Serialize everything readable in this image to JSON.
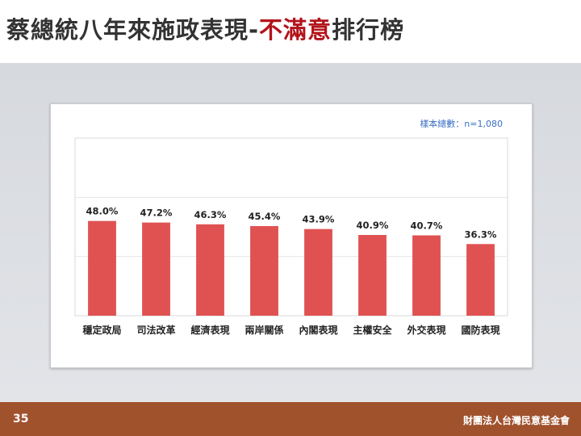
{
  "title": {
    "part1": "蔡總統八年來施政表現-",
    "highlight": "不滿意",
    "part2": "排行榜"
  },
  "sample_note": "樣本總數：n=1,080",
  "footer": {
    "page_number": "35",
    "org": "財團法人台灣民意基金會"
  },
  "colors": {
    "bar": "#e05252",
    "highlight": "#b3131b",
    "footer": "#a0522d"
  },
  "chart_data": {
    "type": "bar",
    "categories": [
      "穩定政局",
      "司法改革",
      "經濟表現",
      "兩岸關係",
      "內閣表現",
      "主權安全",
      "外交表現",
      "國防表現"
    ],
    "values": [
      48.0,
      47.2,
      46.3,
      45.4,
      43.9,
      40.9,
      40.7,
      36.3
    ],
    "value_labels": [
      "48.0%",
      "47.2%",
      "46.3%",
      "45.4%",
      "43.9%",
      "40.9%",
      "40.7%",
      "36.3%"
    ],
    "ylim": [
      0,
      90
    ],
    "grid": true
  }
}
